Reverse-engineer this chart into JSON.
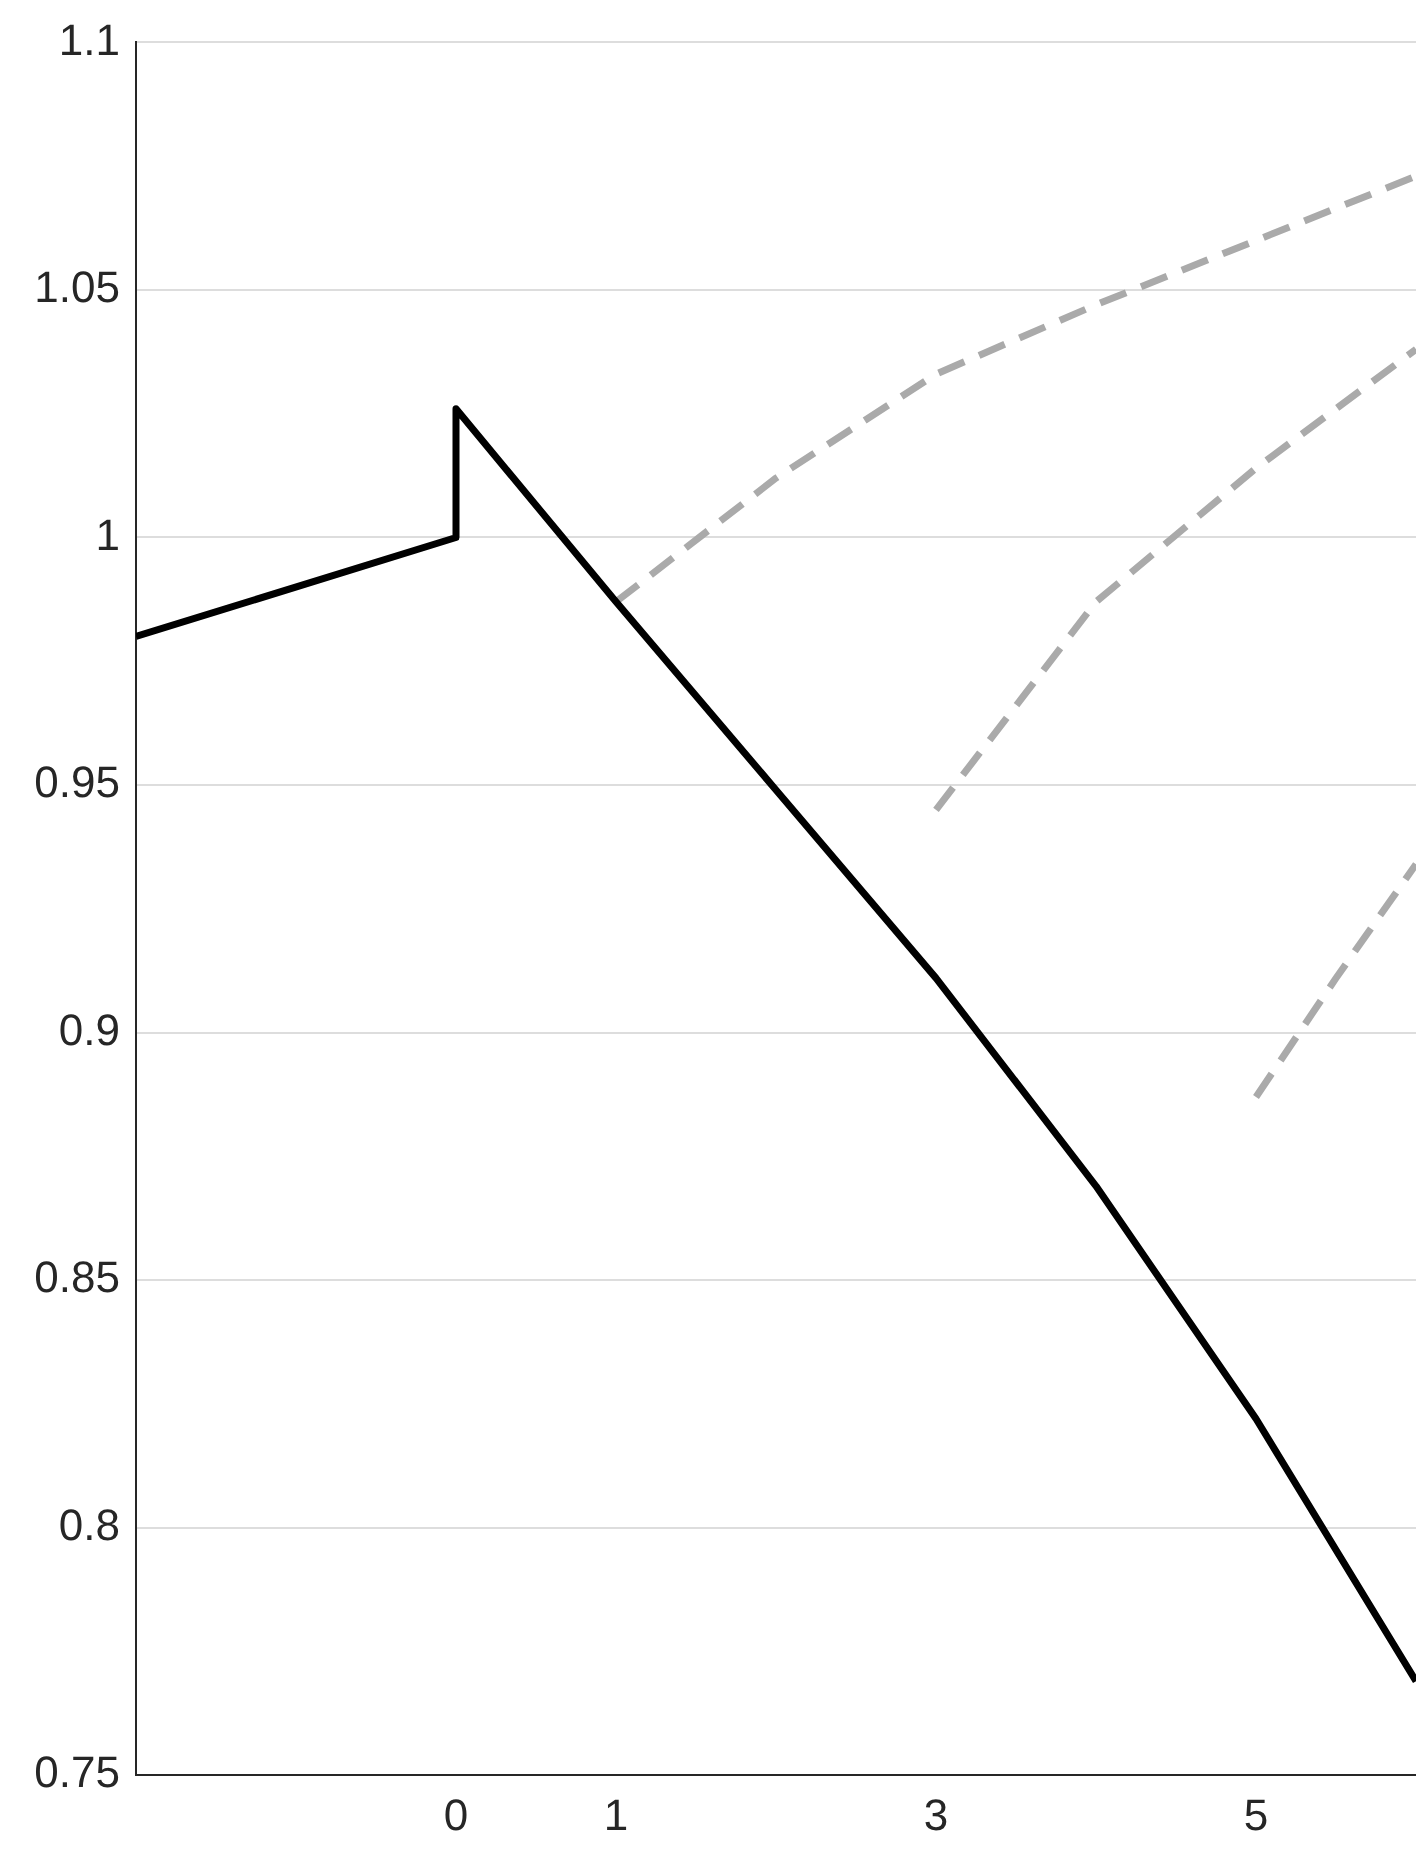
{
  "chart_data": {
    "type": "line",
    "xlim": [
      -2,
      6
    ],
    "xticks": [
      0,
      1,
      3,
      5
    ],
    "ylim": [
      0.75,
      1.1
    ],
    "yticks": [
      0.75,
      0.8,
      0.85,
      0.9,
      0.95,
      1,
      1.05,
      1.1
    ],
    "grid": "y",
    "legend": false,
    "marker": "none",
    "series": [
      {
        "color": "#000000",
        "line_style": "solid",
        "x": [
          -2,
          0,
          0,
          1,
          2,
          3,
          4,
          5,
          6
        ],
        "values": [
          0.98,
          1.0,
          1.026,
          0.987,
          0.949,
          0.911,
          0.869,
          0.822,
          0.769
        ]
      },
      {
        "color": "#aaaaaa",
        "line_style": "dashed",
        "x": [
          1,
          2,
          3,
          4,
          5,
          6
        ],
        "values": [
          0.987,
          1.012,
          1.033,
          1.047,
          1.06,
          1.073
        ]
      },
      {
        "color": "#aaaaaa",
        "line_style": "dashed",
        "x": [
          3,
          3.5,
          4,
          5,
          6
        ],
        "values": [
          0.945,
          0.966,
          0.987,
          1.014,
          1.038
        ]
      },
      {
        "color": "#aaaaaa",
        "line_style": "dashed",
        "x": [
          5,
          5.5,
          6
        ],
        "values": [
          0.887,
          0.911,
          0.934
        ]
      }
    ]
  }
}
